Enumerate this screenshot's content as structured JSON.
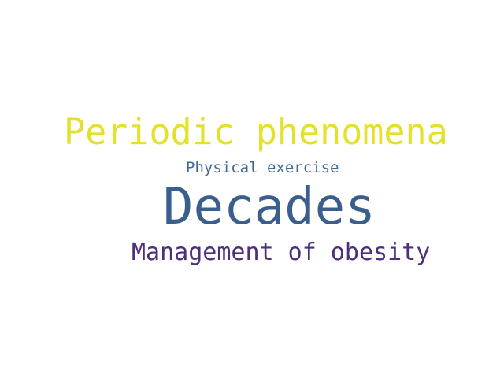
{
  "word_cloud": {
    "words": [
      {
        "text": "Periodic phenomena",
        "color": "#e2e22c"
      },
      {
        "text": "Physical exercise",
        "color": "#3d6a92"
      },
      {
        "text": "Decades",
        "color": "#3b5f8c"
      },
      {
        "text": "Management of obesity",
        "color": "#4d2f7c"
      }
    ]
  }
}
